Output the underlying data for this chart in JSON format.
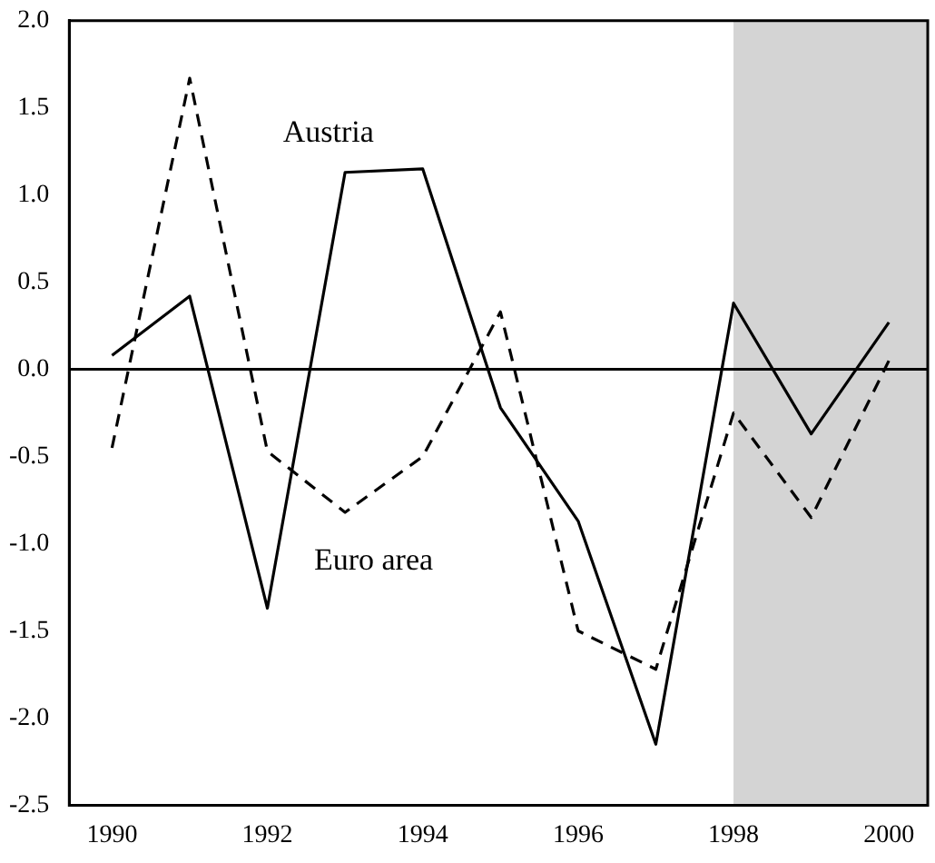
{
  "chart_data": {
    "type": "line",
    "x": [
      1990,
      1991,
      1992,
      1993,
      1994,
      1995,
      1996,
      1997,
      1998,
      1999,
      2000
    ],
    "series": [
      {
        "name": "Austria",
        "color": "#000000",
        "line_style": "solid",
        "values": [
          0.08,
          0.42,
          -1.37,
          1.13,
          1.15,
          -0.22,
          -0.87,
          -2.15,
          0.38,
          -0.37,
          0.27
        ]
      },
      {
        "name": "Euro area",
        "color": "#000000",
        "line_style": "dashed",
        "values": [
          -0.45,
          1.67,
          -0.47,
          -0.82,
          -0.5,
          0.33,
          -1.5,
          -1.72,
          -0.25,
          -0.85,
          0.05
        ]
      }
    ],
    "xlim": [
      1989.45,
      2000.5
    ],
    "xticks": [
      1990,
      1992,
      1994,
      1996,
      1998,
      2000
    ],
    "ylim": [
      -2.5,
      2.0
    ],
    "yticks": [
      {
        "value": -2.5,
        "label": "-2.5"
      },
      {
        "value": -2,
        "label": "-2.0"
      },
      {
        "value": -1.5,
        "label": "-1.5"
      },
      {
        "value": -1,
        "label": "-1.0"
      },
      {
        "value": -0.5,
        "label": "-0.5"
      },
      {
        "value": 0,
        "label": "0.0"
      },
      {
        "value": 0.5,
        "label": "0.5"
      },
      {
        "value": 1,
        "label": "1.0"
      },
      {
        "value": 1.5,
        "label": "1.5"
      },
      {
        "value": 2,
        "label": "2.0"
      }
    ],
    "ref_lines": [
      {
        "axis": "y",
        "value": 0,
        "color": "#000000"
      }
    ],
    "bands": [
      {
        "axis": "x",
        "from": 1998,
        "to": 2000.5,
        "color": "#d4d4d4"
      }
    ],
    "grid": false,
    "legend": false,
    "marker": "none"
  }
}
